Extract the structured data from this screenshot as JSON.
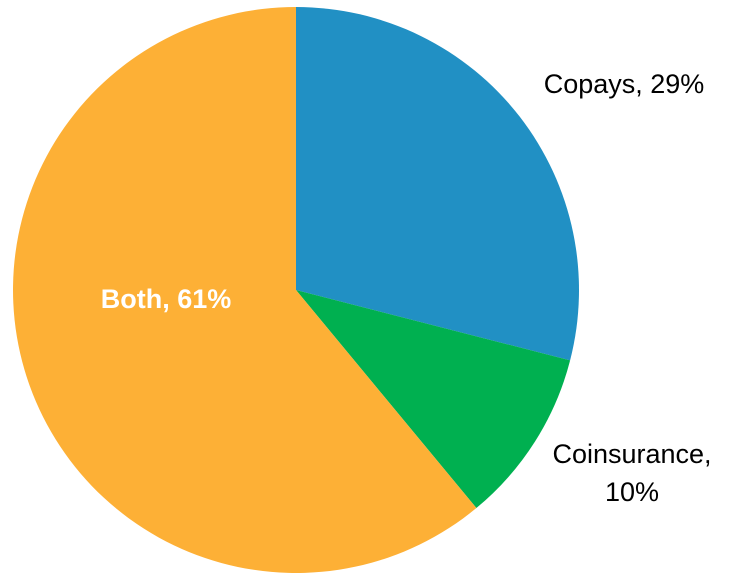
{
  "chart_data": {
    "type": "pie",
    "slices": [
      {
        "label_lines": [
          "Copays, 29%"
        ],
        "label_position": "outside",
        "value": 29,
        "color": "#2190C4"
      },
      {
        "label_lines": [
          "Coinsurance,",
          "10%"
        ],
        "label_position": "outside",
        "value": 10,
        "color": "#00B050"
      },
      {
        "label_lines": [
          "Both, 61%"
        ],
        "label_position": "inside",
        "value": 61,
        "color": "#FDB036"
      }
    ],
    "start_angle": "12 o'clock",
    "direction": "clockwise",
    "label_colors": {
      "outside": "#000000",
      "inside": "#FFFFFF"
    }
  }
}
